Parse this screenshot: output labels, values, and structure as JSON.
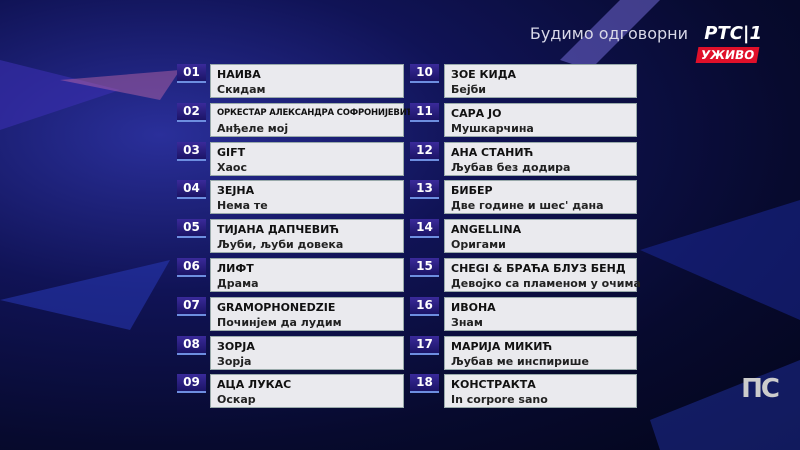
{
  "header": {
    "slogan": "Будимо одговорни",
    "channel_logo": "РТС|1",
    "live_badge": "УЖИВО"
  },
  "corner_logo": "ПС",
  "entries": [
    {
      "num": "01",
      "artist": "НАИВА",
      "song": "Скидам"
    },
    {
      "num": "02",
      "artist": "ОРКЕСТАР АЛЕКСАНДРА СОФРОНИЈЕВИЋА",
      "song": "Анђеле мој"
    },
    {
      "num": "03",
      "artist": "GIFT",
      "song": "Хаос"
    },
    {
      "num": "04",
      "artist": "ЗЕЈНА",
      "song": "Нема те"
    },
    {
      "num": "05",
      "artist": "ТИЈАНА ДАПЧЕВИЋ",
      "song": "Љуби, љуби довека"
    },
    {
      "num": "06",
      "artist": "ЛИФТ",
      "song": "Драма"
    },
    {
      "num": "07",
      "artist": "GRAMOPHONEDZIE",
      "song": "Починјем да лудим"
    },
    {
      "num": "08",
      "artist": "ЗОРЈА",
      "song": "Зорја"
    },
    {
      "num": "09",
      "artist": "АЦА ЛУКАС",
      "song": "Оскар"
    },
    {
      "num": "10",
      "artist": "ЗОЕ КИДА",
      "song": "Бејби"
    },
    {
      "num": "11",
      "artist": "САРА ЈО",
      "song": "Мушкарчина"
    },
    {
      "num": "12",
      "artist": "АНА СТАНИЋ",
      "song": "Љубав без додира"
    },
    {
      "num": "13",
      "artist": "БИБЕР",
      "song": "Две године и шес' дана"
    },
    {
      "num": "14",
      "artist": "ANGELLINA",
      "song": "Оригами"
    },
    {
      "num": "15",
      "artist": "CHEGI & БРАЋА БЛУЗ БЕНД",
      "song": "Девојко са пламеном у очима"
    },
    {
      "num": "16",
      "artist": "ИВОНА",
      "song": "Знам"
    },
    {
      "num": "17",
      "artist": "МАРИЈА МИКИЋ",
      "song": "Љубав ме инспирише"
    },
    {
      "num": "18",
      "artist": "КОНСТРАКТА",
      "song": "In corpore sano"
    }
  ]
}
